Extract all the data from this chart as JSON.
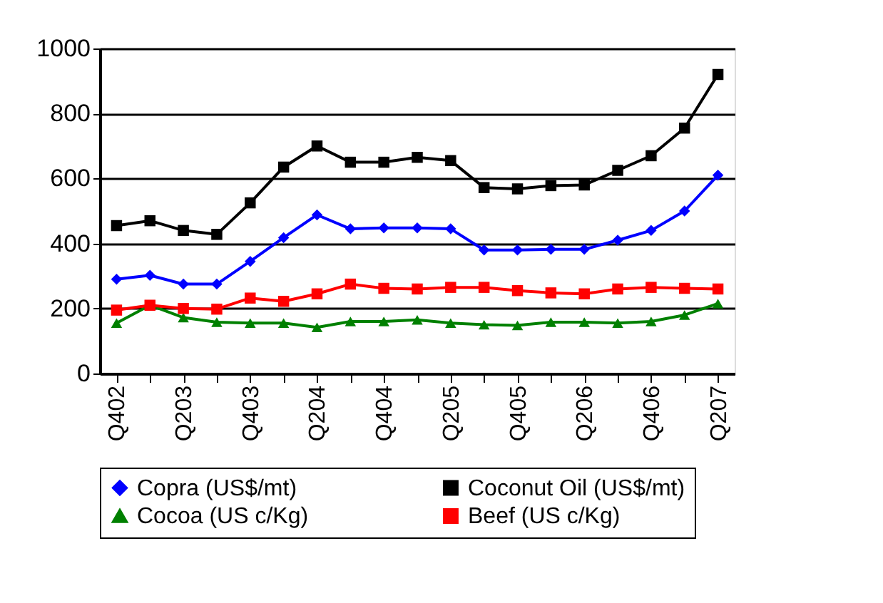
{
  "chart_data": {
    "type": "line",
    "categories": [
      "Q402",
      null,
      "Q203",
      null,
      "Q403",
      null,
      "Q204",
      null,
      "Q404",
      null,
      "Q205",
      null,
      "Q405",
      null,
      "Q206",
      null,
      "Q406",
      null,
      "Q207"
    ],
    "series": [
      {
        "name": "Copra (US$/mt)",
        "color": "#0000ff",
        "marker": "diamond",
        "values": [
          290,
          302,
          275,
          275,
          345,
          418,
          488,
          445,
          448,
          448,
          445,
          380,
          380,
          382,
          382,
          410,
          440,
          500,
          610
        ]
      },
      {
        "name": "Coconut Oil (US$/mt)",
        "color": "#000000",
        "marker": "square",
        "values": [
          455,
          470,
          440,
          428,
          525,
          635,
          700,
          650,
          650,
          665,
          655,
          572,
          568,
          578,
          580,
          625,
          670,
          755,
          920
        ]
      },
      {
        "name": "Cocoa (US c/Kg)",
        "color": "#008000",
        "marker": "triangle",
        "values": [
          155,
          210,
          172,
          158,
          155,
          155,
          142,
          160,
          160,
          165,
          155,
          150,
          148,
          158,
          158,
          155,
          160,
          180,
          215
        ]
      },
      {
        "name": "Beef (US c/Kg)",
        "color": "#ff0000",
        "marker": "square",
        "values": [
          195,
          210,
          200,
          198,
          232,
          222,
          245,
          275,
          262,
          260,
          265,
          265,
          255,
          248,
          245,
          260,
          265,
          262,
          260
        ]
      }
    ],
    "ylim": [
      0,
      1000
    ],
    "yticks": [
      0,
      200,
      400,
      600,
      800,
      1000
    ],
    "grid": "y",
    "legend": "bottom",
    "line_style": "solid"
  }
}
